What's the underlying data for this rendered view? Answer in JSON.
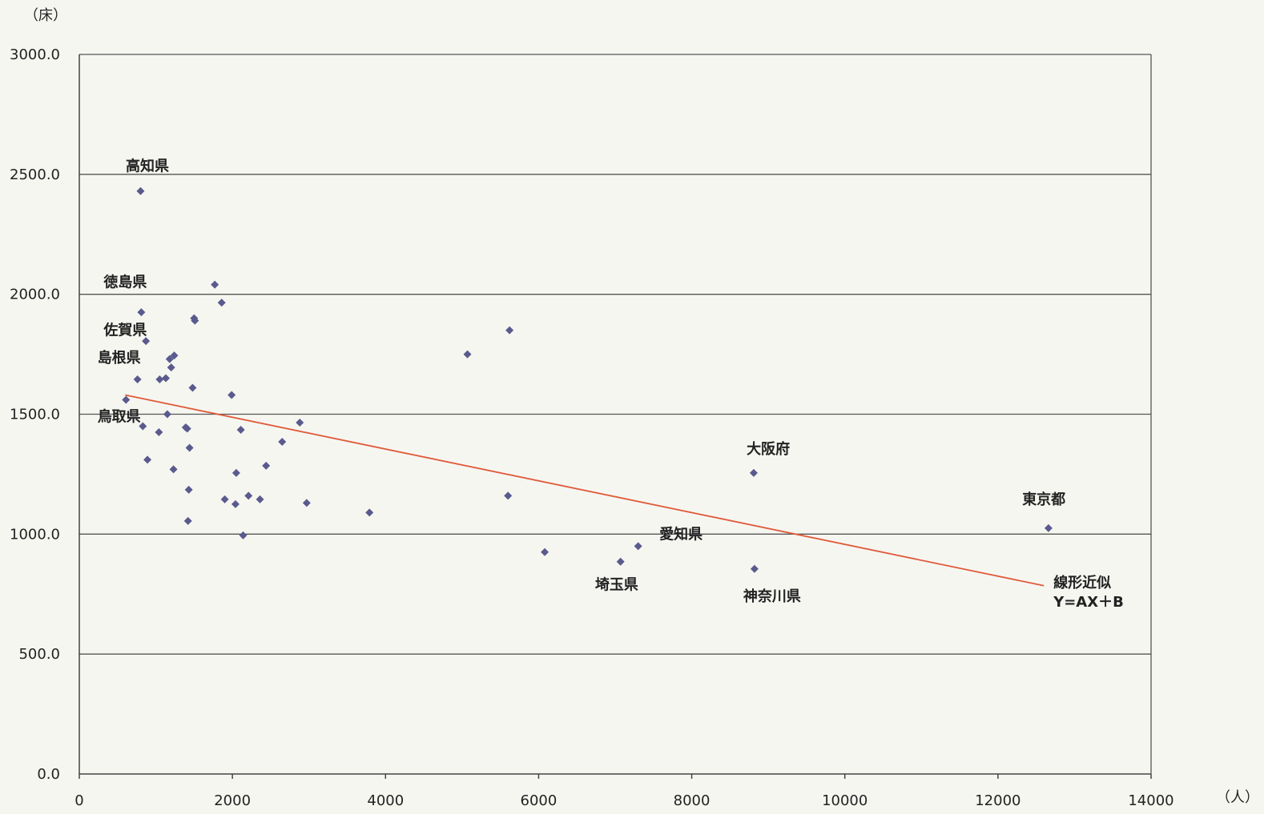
{
  "chart_data": {
    "type": "scatter",
    "title": "",
    "y_unit": "（床）",
    "x_unit": "（人）",
    "xlim": [
      0,
      14000
    ],
    "ylim": [
      0,
      3000
    ],
    "grid": true,
    "x_ticks": [
      "0",
      "2000",
      "4000",
      "6000",
      "8000",
      "10000",
      "12000",
      "14000"
    ],
    "y_ticks": [
      "0.0",
      "500.0",
      "1000.0",
      "1500.0",
      "2000.0",
      "2500.0",
      "3000.0"
    ],
    "x_tick_values": [
      0,
      2000,
      4000,
      6000,
      8000,
      10000,
      12000,
      14000
    ],
    "y_tick_values": [
      0,
      500,
      1000,
      1500,
      2000,
      2500,
      3000
    ],
    "series": [
      {
        "color": "#5a5a8e",
        "marker": "diamond",
        "points": [
          [
            800,
            2430
          ],
          [
            810,
            1925
          ],
          [
            870,
            1805
          ],
          [
            760,
            1645
          ],
          [
            610,
            1560
          ],
          [
            830,
            1450
          ],
          [
            890,
            1310
          ],
          [
            1050,
            1645
          ],
          [
            1130,
            1650
          ],
          [
            1150,
            1500
          ],
          [
            1040,
            1425
          ],
          [
            1180,
            1730
          ],
          [
            1200,
            1695
          ],
          [
            1240,
            1745
          ],
          [
            1230,
            1270
          ],
          [
            1390,
            1445
          ],
          [
            1410,
            1440
          ],
          [
            1420,
            1055
          ],
          [
            1430,
            1185
          ],
          [
            1440,
            1360
          ],
          [
            1480,
            1610
          ],
          [
            1500,
            1900
          ],
          [
            1510,
            1890
          ],
          [
            1770,
            2040
          ],
          [
            1860,
            1965
          ],
          [
            1900,
            1145
          ],
          [
            1990,
            1580
          ],
          [
            2040,
            1125
          ],
          [
            2050,
            1255
          ],
          [
            2110,
            1435
          ],
          [
            2140,
            995
          ],
          [
            2210,
            1160
          ],
          [
            2360,
            1145
          ],
          [
            2440,
            1285
          ],
          [
            2650,
            1385
          ],
          [
            2880,
            1465
          ],
          [
            2970,
            1130
          ],
          [
            3790,
            1090
          ],
          [
            5070,
            1750
          ],
          [
            5600,
            1160
          ],
          [
            5620,
            1850
          ],
          [
            6080,
            925
          ],
          [
            7070,
            885
          ],
          [
            7300,
            950
          ],
          [
            8810,
            1255
          ],
          [
            8820,
            855
          ],
          [
            12660,
            1025
          ]
        ]
      }
    ],
    "trendline": {
      "label": "線形近似",
      "equation": "Y=AX＋B",
      "color": "#e05a3a",
      "x": [
        600,
        12600
      ],
      "y": [
        1580,
        785
      ]
    },
    "annotations": [
      {
        "text": "高知県",
        "x": 890,
        "y": 2515
      },
      {
        "text": "徳島県",
        "x": 600,
        "y": 2030
      },
      {
        "text": "佐賀県",
        "x": 600,
        "y": 1830
      },
      {
        "text": "島根県",
        "x": 520,
        "y": 1715
      },
      {
        "text": "鳥取県",
        "x": 520,
        "y": 1470
      },
      {
        "text": "大阪府",
        "x": 9000,
        "y": 1335
      },
      {
        "text": "東京都",
        "x": 12600,
        "y": 1125
      },
      {
        "text": "愛知県",
        "x": 7860,
        "y": 980
      },
      {
        "text": "埼玉県",
        "x": 7020,
        "y": 770
      },
      {
        "text": "神奈川県",
        "x": 9050,
        "y": 720
      }
    ]
  }
}
